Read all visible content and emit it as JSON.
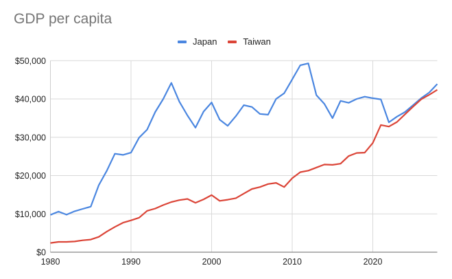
{
  "chart_data": {
    "type": "line",
    "title": "GDP per capita",
    "xlabel": "",
    "ylabel": "",
    "ylim": [
      0,
      50000
    ],
    "xlim": [
      1980,
      2028
    ],
    "grid": true,
    "legend_position": "top",
    "y_ticks": [
      "$0",
      "$10,000",
      "$20,000",
      "$30,000",
      "$40,000",
      "$50,000"
    ],
    "x_ticks": [
      "1980",
      "1990",
      "2000",
      "2010",
      "2020"
    ],
    "x": [
      1980,
      1981,
      1982,
      1983,
      1984,
      1985,
      1986,
      1987,
      1988,
      1989,
      1990,
      1991,
      1992,
      1993,
      1994,
      1995,
      1996,
      1997,
      1998,
      1999,
      2000,
      2001,
      2002,
      2003,
      2004,
      2005,
      2006,
      2007,
      2008,
      2009,
      2010,
      2011,
      2012,
      2013,
      2014,
      2015,
      2016,
      2017,
      2018,
      2019,
      2020,
      2021,
      2022,
      2023,
      2024,
      2025,
      2026,
      2027,
      2028
    ],
    "series": [
      {
        "name": "Japan",
        "color": "#4a86e0",
        "values": [
          9750,
          10600,
          9800,
          10700,
          11300,
          11900,
          17500,
          21300,
          25700,
          25400,
          26000,
          29900,
          32000,
          36600,
          40000,
          44200,
          39300,
          35700,
          32500,
          36700,
          39100,
          34600,
          33000,
          35500,
          38400,
          37900,
          36100,
          35900,
          40000,
          41500,
          45100,
          48800,
          49300,
          41000,
          38700,
          35000,
          39500,
          39000,
          40000,
          40600,
          40200,
          39900,
          33900,
          35400,
          36600,
          38400,
          40200,
          41700,
          43900
        ]
      },
      {
        "name": "Taiwan",
        "color": "#db4437",
        "values": [
          2400,
          2700,
          2700,
          2800,
          3100,
          3300,
          4000,
          5400,
          6600,
          7700,
          8300,
          9000,
          10800,
          11400,
          12300,
          13100,
          13600,
          13900,
          12900,
          13800,
          14900,
          13400,
          13700,
          14100,
          15300,
          16500,
          17000,
          17800,
          18100,
          17000,
          19300,
          20900,
          21300,
          22100,
          22900,
          22800,
          23100,
          25100,
          25900,
          26000,
          28500,
          33200,
          32800,
          34000,
          36000,
          38000,
          39900,
          41100,
          42400
        ]
      }
    ]
  },
  "legend": {
    "items": [
      {
        "label": "Japan",
        "color": "#4a86e0"
      },
      {
        "label": "Taiwan",
        "color": "#db4437"
      }
    ]
  }
}
